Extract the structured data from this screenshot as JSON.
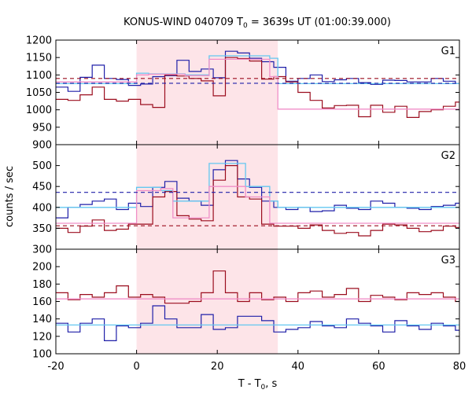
{
  "chart_data": {
    "type": "line",
    "title": "KONUS-WIND 040709 T",
    "title_sub": "0",
    "title_rest": " = 3639s UT (01:00:39.000)",
    "xlabel": "T - T",
    "xlabel_sub": "0",
    "xlabel_rest": ", s",
    "ylabel": "counts / sec",
    "xlim": [
      -20,
      80
    ],
    "x_ticks": [
      -20,
      0,
      20,
      40,
      60,
      80
    ],
    "grid": false,
    "highlight": {
      "x_range": [
        0,
        35
      ],
      "color": "#fde4e8"
    },
    "colors": {
      "blue": "#1f1fa8",
      "red": "#9b0d1e",
      "lightblue": "#63c7f0",
      "pink": "#f08fc8"
    },
    "panels": [
      {
        "name": "G1",
        "ylim": [
          900,
          1200
        ],
        "y_ticks": [
          900,
          950,
          1000,
          1050,
          1100,
          1150,
          1200
        ],
        "step": 3,
        "series": [
          {
            "style": "step",
            "color_key": "blue",
            "x0": -20,
            "values": [
              1065,
              1053,
              1093,
              1128,
              1090,
              1087,
              1070,
              1074,
              1095,
              1098,
              1142,
              1110,
              1117,
              1092,
              1168,
              1163,
              1148,
              1138,
              1122,
              1082,
              1090,
              1100,
              1081,
              1086,
              1090,
              1078,
              1073,
              1085,
              1084,
              1080,
              1080,
              1090,
              1082,
              1075,
              1047
            ]
          },
          {
            "style": "step",
            "color_key": "red",
            "x0": -20,
            "values": [
              1030,
              1027,
              1043,
              1065,
              1030,
              1025,
              1030,
              1015,
              1007,
              1100,
              1097,
              1090,
              1083,
              1040,
              1150,
              1147,
              1140,
              1088,
              1095,
              1080,
              1050,
              1027,
              1005,
              1012,
              1013,
              980,
              1013,
              993,
              1010,
              978,
              995,
              1000,
              1010,
              1022,
              995
            ]
          },
          {
            "style": "step",
            "color_key": "lightblue",
            "edges": [
              -20,
              0,
              3,
              12,
              18,
              33,
              35,
              80
            ],
            "values": [
              1075,
              1105,
              1103,
              1100,
              1155,
              1148,
              1075
            ]
          },
          {
            "style": "step",
            "color_key": "pink",
            "edges": [
              -20,
              0,
              3,
              12,
              18,
              33,
              35,
              80
            ],
            "values": [
              1080,
              1100,
              1102,
              1098,
              1145,
              1095,
              1002
            ]
          },
          {
            "style": "dashed",
            "color_key": "red",
            "y": 1090
          },
          {
            "style": "dashed",
            "color_key": "blue",
            "y": 1076
          }
        ]
      },
      {
        "name": "G2",
        "ylim": [
          300,
          550
        ],
        "y_ticks": [
          300,
          350,
          400,
          450,
          500
        ],
        "step": 3,
        "series": [
          {
            "style": "step",
            "color_key": "blue",
            "x0": -20,
            "values": [
              375,
              400,
              407,
              415,
              420,
              395,
              410,
              402,
              448,
              462,
              422,
              415,
              405,
              490,
              512,
              468,
              448,
              415,
              400,
              395,
              400,
              390,
              392,
              405,
              398,
              395,
              415,
              410,
              400,
              398,
              395,
              402,
              405,
              410,
              405
            ]
          },
          {
            "style": "step",
            "color_key": "red",
            "x0": -20,
            "values": [
              350,
              340,
              355,
              370,
              345,
              348,
              360,
              360,
              425,
              438,
              380,
              372,
              368,
              465,
              500,
              425,
              420,
              360,
              355,
              355,
              350,
              358,
              345,
              338,
              340,
              332,
              345,
              360,
              358,
              350,
              342,
              345,
              355,
              352,
              345
            ]
          },
          {
            "style": "step",
            "color_key": "lightblue",
            "edges": [
              -20,
              0,
              6,
              9,
              18,
              27,
              33,
              35,
              80
            ],
            "values": [
              400,
              448,
              440,
              415,
              505,
              450,
              415,
              400
            ]
          },
          {
            "style": "step",
            "color_key": "pink",
            "edges": [
              -20,
              0,
              6,
              9,
              18,
              27,
              33,
              35,
              80
            ],
            "values": [
              362,
              440,
              445,
              375,
              450,
              425,
              362,
              362
            ]
          },
          {
            "style": "dashed",
            "color_key": "blue",
            "y": 436
          },
          {
            "style": "dashed",
            "color_key": "red",
            "y": 356
          }
        ]
      },
      {
        "name": "G3",
        "ylim": [
          100,
          220
        ],
        "y_ticks": [
          100,
          120,
          140,
          160,
          180,
          200
        ],
        "step": 3,
        "series": [
          {
            "style": "step",
            "color_key": "blue",
            "x0": -20,
            "values": [
              135,
              125,
              135,
              140,
              115,
              132,
              130,
              135,
              155,
              140,
              130,
              130,
              145,
              128,
              130,
              143,
              143,
              138,
              125,
              128,
              130,
              137,
              132,
              130,
              140,
              135,
              132,
              125,
              138,
              132,
              128,
              135,
              132,
              127,
              135
            ]
          },
          {
            "style": "step",
            "color_key": "red",
            "x0": -20,
            "values": [
              170,
              162,
              168,
              165,
              170,
              178,
              165,
              168,
              165,
              158,
              158,
              160,
              170,
              195,
              170,
              160,
              170,
              162,
              165,
              160,
              170,
              172,
              165,
              168,
              175,
              160,
              167,
              165,
              162,
              170,
              168,
              170,
              165,
              160,
              175
            ]
          },
          {
            "style": "step",
            "color_key": "lightblue",
            "edges": [
              -20,
              80
            ],
            "values": [
              133
            ]
          },
          {
            "style": "step",
            "color_key": "pink",
            "edges": [
              -20,
              80
            ],
            "values": [
              163
            ]
          }
        ]
      }
    ]
  }
}
